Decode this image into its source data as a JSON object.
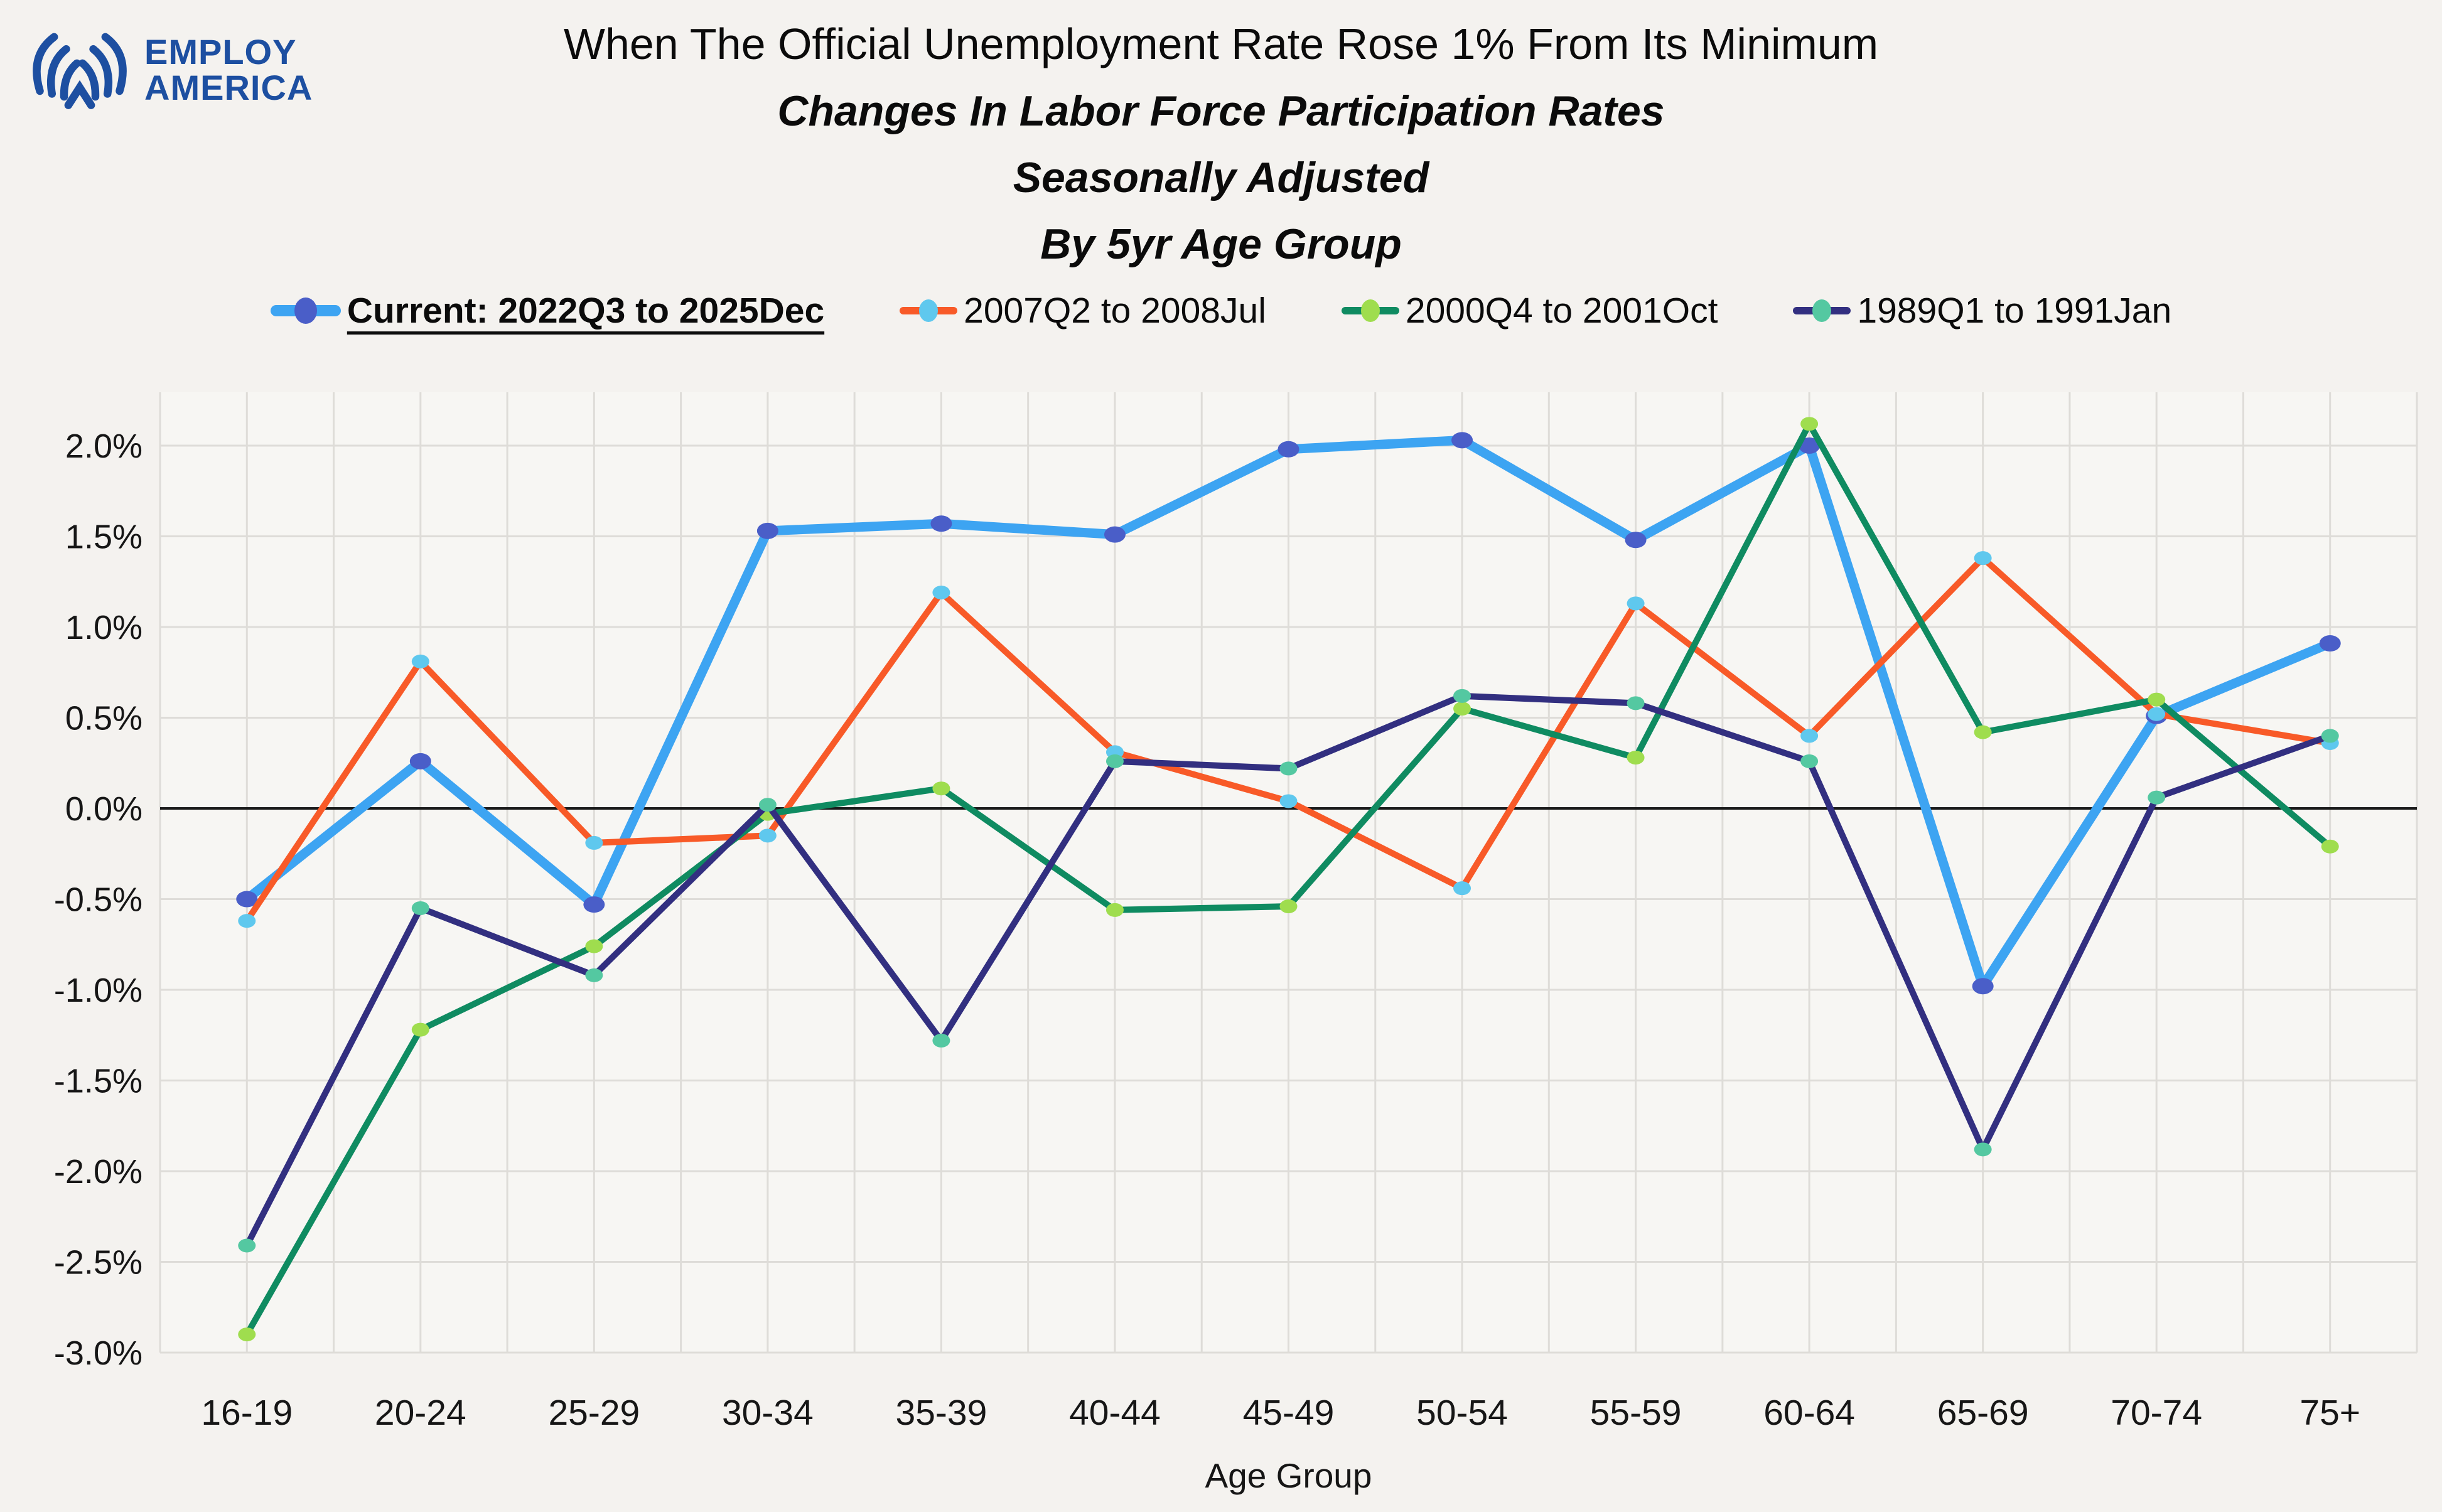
{
  "logo": {
    "line1": "EMPLOY",
    "line2": "AMERICA",
    "color": "#1d4fa1"
  },
  "title": {
    "line1": "When The Official Unemployment Rate Rose 1% From Its Minimum",
    "line2": "Changes In Labor Force Participation Rates",
    "line3": "Seasonally Adjusted",
    "line4": "By 5yr Age Group"
  },
  "colors": {
    "page_background": "#f4f2ef",
    "plot_background": "#f7f6f3",
    "gridline": "#dedcd8",
    "zero_line": "#1a1a1a",
    "text": "#0b0b0b"
  },
  "chart_data": {
    "type": "line",
    "title": "When The Official Unemployment Rate Rose 1% From Its Minimum — Changes In Labor Force Participation Rates, Seasonally Adjusted, By 5yr Age Group",
    "categories": [
      "16-19",
      "20-24",
      "25-29",
      "30-34",
      "35-39",
      "40-44",
      "45-49",
      "50-54",
      "55-59",
      "60-64",
      "65-69",
      "70-74",
      "75+"
    ],
    "series": [
      {
        "name": "Current: 2022Q3 to 2025Dec",
        "line_color": "#3da4f2",
        "marker_color": "#4a5ec8",
        "line_width": 15,
        "marker_rx": 17,
        "marker_ry": 13,
        "values": [
          -0.5,
          0.26,
          -0.53,
          1.53,
          1.57,
          1.51,
          1.98,
          2.03,
          1.48,
          2.0,
          -0.98,
          0.51,
          0.91
        ]
      },
      {
        "name": "2007Q2 to 2008Jul",
        "line_color": "#f85a28",
        "marker_color": "#5fc8ee",
        "line_width": 10,
        "marker_rx": 14,
        "marker_ry": 11,
        "values": [
          -0.62,
          0.81,
          -0.19,
          -0.15,
          1.19,
          0.31,
          0.04,
          -0.44,
          1.13,
          0.4,
          1.38,
          0.52,
          0.36
        ]
      },
      {
        "name": "2000Q4 to 2001Oct",
        "line_color": "#0f8b61",
        "marker_color": "#9fdd4e",
        "line_width": 10,
        "marker_rx": 14,
        "marker_ry": 11,
        "values": [
          -2.9,
          -1.22,
          -0.76,
          -0.03,
          0.11,
          -0.56,
          -0.54,
          0.55,
          0.28,
          2.12,
          0.42,
          0.6,
          -0.21
        ]
      },
      {
        "name": "1989Q1 to 1991Jan",
        "line_color": "#322f80",
        "marker_color": "#54c8a1",
        "line_width": 10,
        "marker_rx": 14,
        "marker_ry": 11,
        "values": [
          -2.41,
          -0.55,
          -0.92,
          0.02,
          -1.28,
          0.26,
          0.22,
          0.62,
          0.58,
          0.26,
          -1.88,
          0.06,
          0.4
        ]
      }
    ],
    "xlabel": "Age Group",
    "ylabel": "",
    "ylim": [
      -3.05,
      2.3
    ],
    "yticks": [
      2.0,
      1.5,
      1.0,
      0.5,
      0.0,
      -0.5,
      -1.0,
      -1.5,
      -2.0,
      -2.5,
      -3.0
    ],
    "ytick_format": "percent_one_decimal",
    "grid": true,
    "grid_minor_vertical": true,
    "zero_line": true,
    "legend_position": "top"
  }
}
